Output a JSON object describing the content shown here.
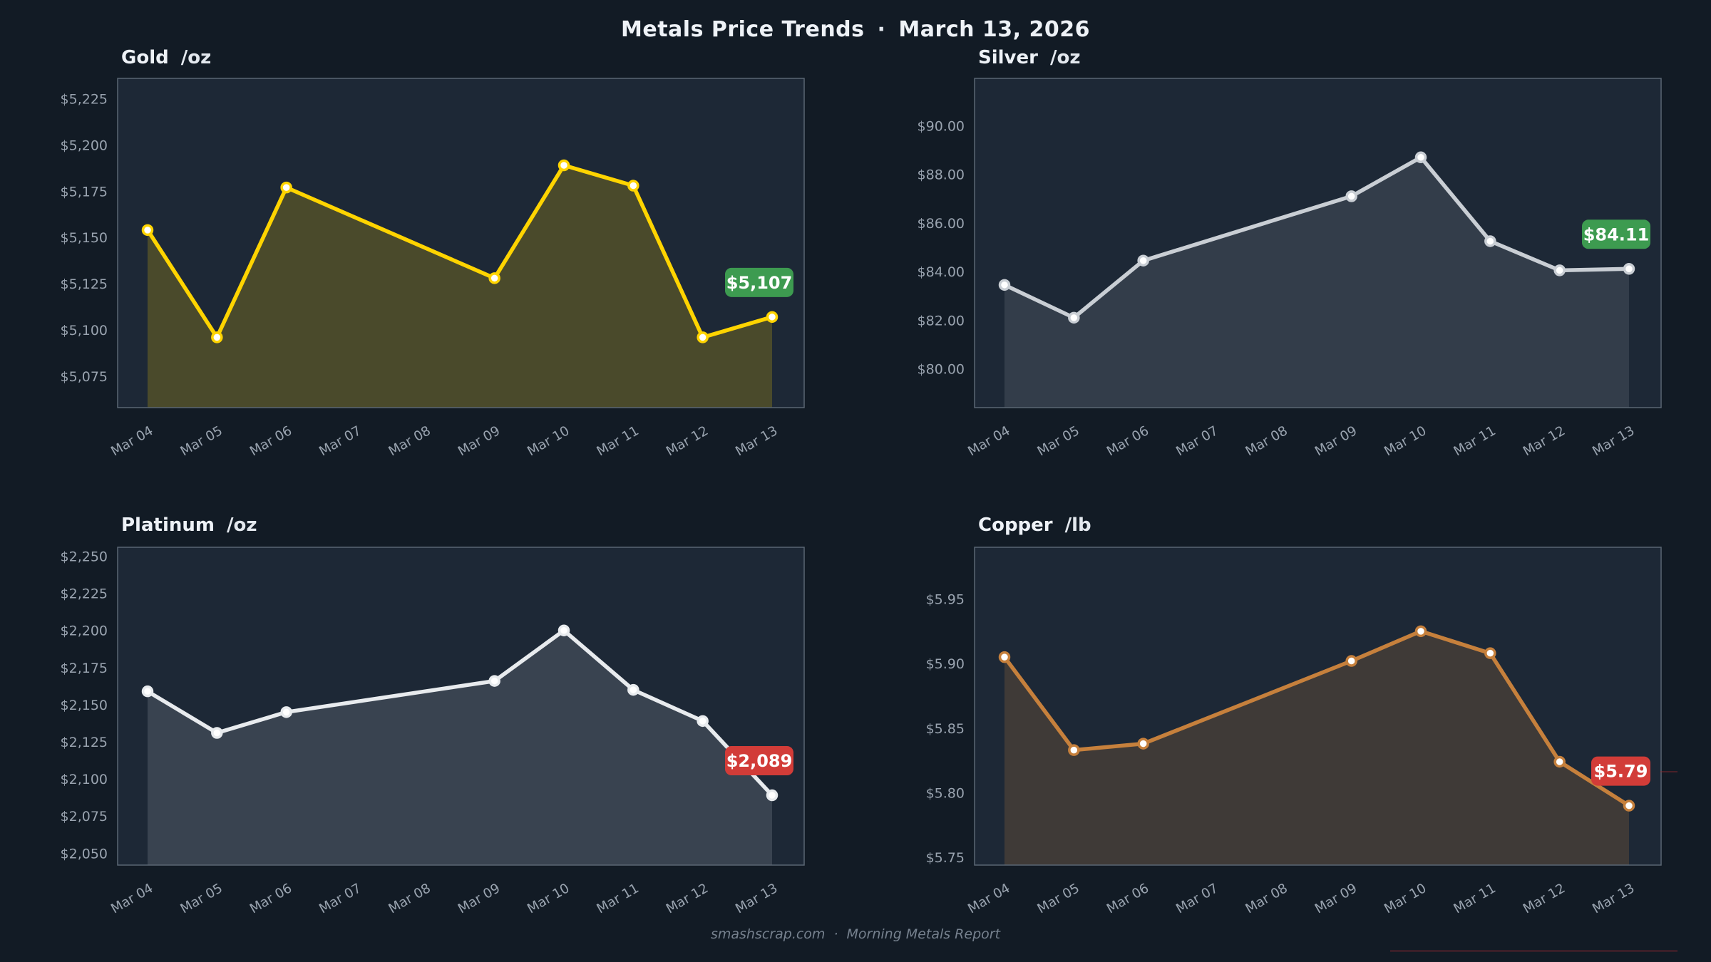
{
  "page": {
    "bg": "#121b25",
    "panel_bg": "#1d2836",
    "frame_color": "#5a6673",
    "tick_color": "#99a3af",
    "decor_line_color": "#9e2a30"
  },
  "header": {
    "title": "Metals Price Trends",
    "separator": "·",
    "date": "March 13, 2026"
  },
  "footer": {
    "site": "smashscrap.com",
    "separator": "·",
    "report": "Morning Metals Report"
  },
  "chart_data": [
    {
      "type": "line",
      "title": "Gold",
      "unit": "/oz",
      "categories": [
        "Mar 04",
        "Mar 05",
        "Mar 06",
        "Mar 07",
        "Mar 08",
        "Mar 09",
        "Mar 10",
        "Mar 11",
        "Mar 12",
        "Mar 13"
      ],
      "point_indices": [
        0,
        1,
        2,
        5,
        6,
        7,
        8,
        9
      ],
      "series": [
        {
          "name": "Gold",
          "x": [
            "Mar 04",
            "Mar 05",
            "Mar 06",
            "Mar 09",
            "Mar 10",
            "Mar 11",
            "Mar 12",
            "Mar 13"
          ],
          "values": [
            5154,
            5096,
            5177,
            5128,
            5189,
            5178,
            5096,
            5107
          ]
        }
      ],
      "ylim": [
        5058,
        5236
      ],
      "yticks": [
        {
          "v": 5075,
          "label": "$5,075"
        },
        {
          "v": 5100,
          "label": "$5,100"
        },
        {
          "v": 5125,
          "label": "$5,125"
        },
        {
          "v": 5150,
          "label": "$5,150"
        },
        {
          "v": 5175,
          "label": "$5,175"
        },
        {
          "v": 5200,
          "label": "$5,200"
        },
        {
          "v": 5225,
          "label": "$5,225"
        }
      ],
      "line_color": "#ffd400",
      "fill_alpha": 0.2,
      "last_value_label": "$5,107",
      "badge_color": "#3d9b50",
      "trend": "up",
      "grid": false,
      "legend": false
    },
    {
      "type": "line",
      "title": "Silver",
      "unit": "/oz",
      "categories": [
        "Mar 04",
        "Mar 05",
        "Mar 06",
        "Mar 07",
        "Mar 08",
        "Mar 09",
        "Mar 10",
        "Mar 11",
        "Mar 12",
        "Mar 13"
      ],
      "point_indices": [
        0,
        1,
        2,
        5,
        6,
        7,
        8,
        9
      ],
      "series": [
        {
          "name": "Silver",
          "x": [
            "Mar 04",
            "Mar 05",
            "Mar 06",
            "Mar 09",
            "Mar 10",
            "Mar 11",
            "Mar 12",
            "Mar 13"
          ],
          "values": [
            83.45,
            82.1,
            84.45,
            87.1,
            88.7,
            85.25,
            84.05,
            84.11
          ]
        }
      ],
      "ylim": [
        78.4,
        91.95
      ],
      "yticks": [
        {
          "v": 80,
          "label": "$80.00"
        },
        {
          "v": 82,
          "label": "$82.00"
        },
        {
          "v": 84,
          "label": "$84.00"
        },
        {
          "v": 86,
          "label": "$86.00"
        },
        {
          "v": 88,
          "label": "$88.00"
        },
        {
          "v": 90,
          "label": "$90.00"
        }
      ],
      "line_color": "#c9ced4",
      "fill_alpha": 0.13,
      "last_value_label": "$84.11",
      "badge_color": "#3d9b50",
      "trend": "up",
      "grid": false,
      "legend": false
    },
    {
      "type": "line",
      "title": "Platinum",
      "unit": "/oz",
      "categories": [
        "Mar 04",
        "Mar 05",
        "Mar 06",
        "Mar 07",
        "Mar 08",
        "Mar 09",
        "Mar 10",
        "Mar 11",
        "Mar 12",
        "Mar 13"
      ],
      "point_indices": [
        0,
        1,
        2,
        5,
        6,
        7,
        8,
        9
      ],
      "series": [
        {
          "name": "Platinum",
          "x": [
            "Mar 04",
            "Mar 05",
            "Mar 06",
            "Mar 09",
            "Mar 10",
            "Mar 11",
            "Mar 12",
            "Mar 13"
          ],
          "values": [
            2159,
            2131,
            2145,
            2166,
            2200,
            2160,
            2139,
            2089
          ]
        }
      ],
      "ylim": [
        2042,
        2256
      ],
      "yticks": [
        {
          "v": 2050,
          "label": "$2,050"
        },
        {
          "v": 2075,
          "label": "$2,075"
        },
        {
          "v": 2100,
          "label": "$2,100"
        },
        {
          "v": 2125,
          "label": "$2,125"
        },
        {
          "v": 2150,
          "label": "$2,150"
        },
        {
          "v": 2175,
          "label": "$2,175"
        },
        {
          "v": 2200,
          "label": "$2,200"
        },
        {
          "v": 2225,
          "label": "$2,225"
        },
        {
          "v": 2250,
          "label": "$2,250"
        }
      ],
      "line_color": "#e8ebee",
      "fill_alpha": 0.14,
      "last_value_label": "$2,089",
      "badge_color": "#d23c38",
      "trend": "down",
      "grid": false,
      "legend": false
    },
    {
      "type": "line",
      "title": "Copper",
      "unit": "/lb",
      "categories": [
        "Mar 04",
        "Mar 05",
        "Mar 06",
        "Mar 07",
        "Mar 08",
        "Mar 09",
        "Mar 10",
        "Mar 11",
        "Mar 12",
        "Mar 13"
      ],
      "point_indices": [
        0,
        1,
        2,
        5,
        6,
        7,
        8,
        9
      ],
      "series": [
        {
          "name": "Copper",
          "x": [
            "Mar 04",
            "Mar 05",
            "Mar 06",
            "Mar 09",
            "Mar 10",
            "Mar 11",
            "Mar 12",
            "Mar 13"
          ],
          "values": [
            5.905,
            5.833,
            5.838,
            5.902,
            5.925,
            5.908,
            5.824,
            5.79
          ]
        }
      ],
      "ylim": [
        5.744,
        5.99
      ],
      "yticks": [
        {
          "v": 5.75,
          "label": "$5.75"
        },
        {
          "v": 5.8,
          "label": "$5.80"
        },
        {
          "v": 5.85,
          "label": "$5.85"
        },
        {
          "v": 5.9,
          "label": "$5.90"
        },
        {
          "v": 5.95,
          "label": "$5.95"
        }
      ],
      "line_color": "#c6803c",
      "fill_alpha": 0.2,
      "last_value_label": "$5.79",
      "badge_color": "#d23c38",
      "trend": "down",
      "grid": false,
      "legend": false
    }
  ]
}
